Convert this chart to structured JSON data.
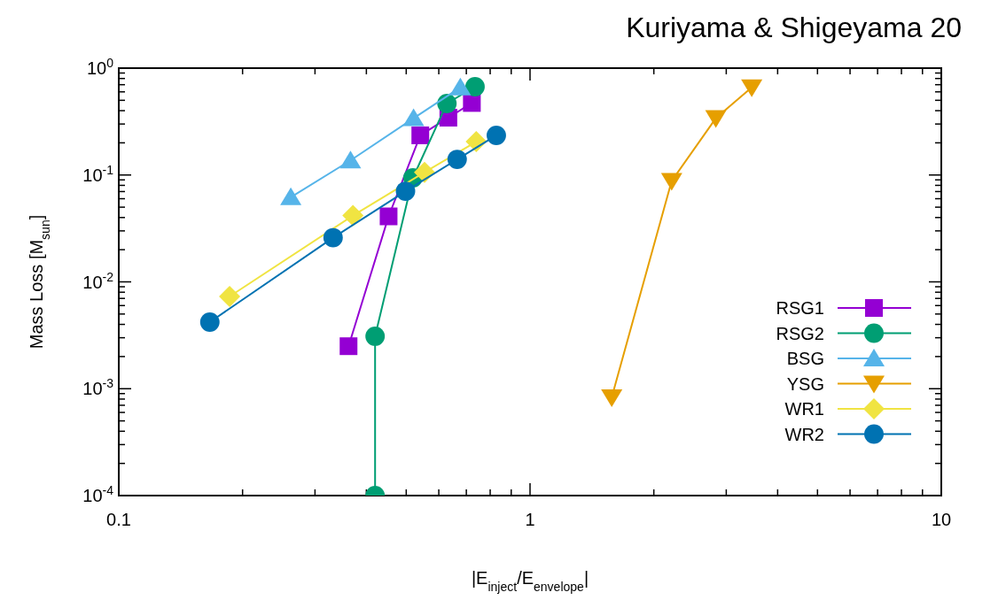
{
  "chart_data": {
    "type": "line",
    "title": "Kuriyama & Shigeyama 20",
    "xlabel": "|E$_{inject}$/E$_{envelope}$|",
    "ylabel": "Mass Loss  [M$_{sun}$]",
    "log": "xy",
    "grid": false,
    "legend": "bottom right",
    "line_style": "solid",
    "xlim": [
      0.1,
      10
    ],
    "ylim": [
      0.0001,
      1
    ],
    "xticks": [
      0.1,
      {
        "value": 0.2,
        "label": null
      },
      {
        "value": 0.3,
        "label": null
      },
      {
        "value": 0.4,
        "label": null
      },
      {
        "value": 0.5,
        "label": null
      },
      {
        "value": 0.6,
        "label": null
      },
      {
        "value": 0.7,
        "label": null
      },
      {
        "value": 0.8,
        "label": null
      },
      {
        "value": 0.9,
        "label": null
      },
      1,
      {
        "value": 2,
        "label": null
      },
      {
        "value": 3,
        "label": null
      },
      {
        "value": 4,
        "label": null
      },
      {
        "value": 5,
        "label": null
      },
      {
        "value": 6,
        "label": null
      },
      {
        "value": 7,
        "label": null
      },
      {
        "value": 8,
        "label": null
      },
      {
        "value": 9,
        "label": null
      },
      10
    ],
    "yticks": [
      {
        "value": 0.0001,
        "label": "10$^{-4}$"
      },
      {
        "value": 0.0002,
        "label": null
      },
      {
        "value": 0.0003,
        "label": null
      },
      {
        "value": 0.0004,
        "label": null
      },
      {
        "value": 0.0005,
        "label": null
      },
      {
        "value": 0.0006,
        "label": null
      },
      {
        "value": 0.0007,
        "label": null
      },
      {
        "value": 0.0008,
        "label": null
      },
      {
        "value": 0.0009,
        "label": null
      },
      {
        "value": 0.001,
        "label": "10$^{-3}$"
      },
      {
        "value": 0.002,
        "label": null
      },
      {
        "value": 0.003,
        "label": null
      },
      {
        "value": 0.004,
        "label": null
      },
      {
        "value": 0.005,
        "label": null
      },
      {
        "value": 0.006,
        "label": null
      },
      {
        "value": 0.007,
        "label": null
      },
      {
        "value": 0.008,
        "label": null
      },
      {
        "value": 0.009,
        "label": null
      },
      {
        "value": 0.01,
        "label": "10$^{-2}$"
      },
      {
        "value": 0.02,
        "label": null
      },
      {
        "value": 0.03,
        "label": null
      },
      {
        "value": 0.04,
        "label": null
      },
      {
        "value": 0.05,
        "label": null
      },
      {
        "value": 0.06,
        "label": null
      },
      {
        "value": 0.07,
        "label": null
      },
      {
        "value": 0.08,
        "label": null
      },
      {
        "value": 0.09,
        "label": null
      },
      {
        "value": 0.1,
        "label": "10$^{-1}$"
      },
      {
        "value": 0.2,
        "label": null
      },
      {
        "value": 0.3,
        "label": null
      },
      {
        "value": 0.4,
        "label": null
      },
      {
        "value": 0.5,
        "label": null
      },
      {
        "value": 0.6,
        "label": null
      },
      {
        "value": 0.7,
        "label": null
      },
      {
        "value": 0.8,
        "label": null
      },
      {
        "value": 0.9,
        "label": null
      },
      {
        "value": 1,
        "label": "10$^{0}$"
      }
    ],
    "series": [
      {
        "name": "RSG1",
        "color": "#9400d3",
        "marker": "square",
        "x": [
          0.362,
          0.453,
          0.541,
          0.633,
          0.722
        ],
        "values": [
          0.0025,
          0.041,
          0.235,
          0.344,
          0.472
        ]
      },
      {
        "name": "RSG2",
        "color": "#009e73",
        "marker": "circle",
        "x": [
          0.42,
          0.42,
          0.519,
          0.628,
          0.735
        ],
        "values": [
          0.0001,
          0.0031,
          0.094,
          0.467,
          0.67
        ]
      },
      {
        "name": "BSG",
        "color": "#56b4e9",
        "marker": "triangle",
        "x": [
          0.262,
          0.366,
          0.521,
          0.677
        ],
        "values": [
          0.062,
          0.137,
          0.34,
          0.66
        ]
      },
      {
        "name": "YSG",
        "color": "#e69f00",
        "marker": "triangle-down",
        "x": [
          1.58,
          2.21,
          2.83,
          3.46
        ],
        "values": [
          0.00083,
          0.088,
          0.34,
          0.66
        ]
      },
      {
        "name": "WR1",
        "color": "#f0e442",
        "marker": "diamond",
        "x": [
          0.186,
          0.371,
          0.554,
          0.74
        ],
        "values": [
          0.0073,
          0.0417,
          0.106,
          0.205
        ]
      },
      {
        "name": "WR2",
        "color": "#0072b2",
        "marker": "circle",
        "x": [
          0.1665,
          0.332,
          0.498,
          0.665,
          0.828
        ],
        "values": [
          0.0042,
          0.0259,
          0.0705,
          0.14,
          0.235
        ]
      }
    ]
  }
}
